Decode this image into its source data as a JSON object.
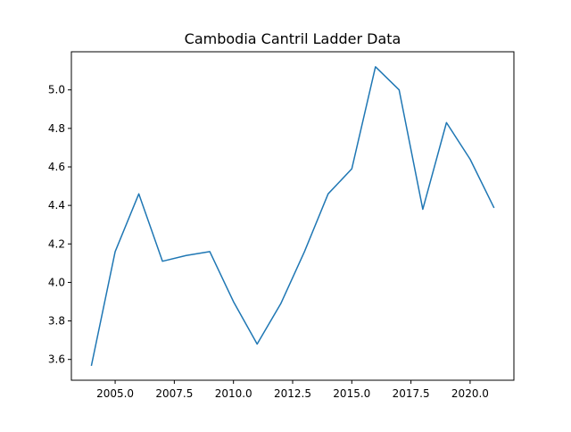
{
  "chart_data": {
    "type": "line",
    "title": "Cambodia Cantril Ladder Data",
    "xlabel": "",
    "ylabel": "",
    "xlim": [
      2003.15,
      2021.85
    ],
    "ylim": [
      3.492,
      5.198
    ],
    "grid": false,
    "xticks": [
      2005.0,
      2007.5,
      2010.0,
      2012.5,
      2015.0,
      2017.5,
      2020.0
    ],
    "xtick_labels": [
      "2005.0",
      "2007.5",
      "2010.0",
      "2012.5",
      "2015.0",
      "2017.5",
      "2020.0"
    ],
    "yticks": [
      3.6,
      3.8,
      4.0,
      4.2,
      4.4,
      4.6,
      4.8,
      5.0
    ],
    "ytick_labels": [
      "3.6",
      "3.8",
      "4.0",
      "4.2",
      "4.4",
      "4.6",
      "4.8",
      "5.0"
    ],
    "series": [
      {
        "color": "#1f77b4",
        "x": [
          2004,
          2005,
          2006,
          2007,
          2008,
          2009,
          2010,
          2011,
          2012,
          2013,
          2014,
          2015,
          2016,
          2017,
          2018,
          2019,
          2020,
          2021
        ],
        "y": [
          3.57,
          4.16,
          4.46,
          4.11,
          4.14,
          4.16,
          3.9,
          3.68,
          3.89,
          4.16,
          4.46,
          4.59,
          5.12,
          5.0,
          4.38,
          4.83,
          4.64,
          4.39
        ]
      }
    ]
  }
}
